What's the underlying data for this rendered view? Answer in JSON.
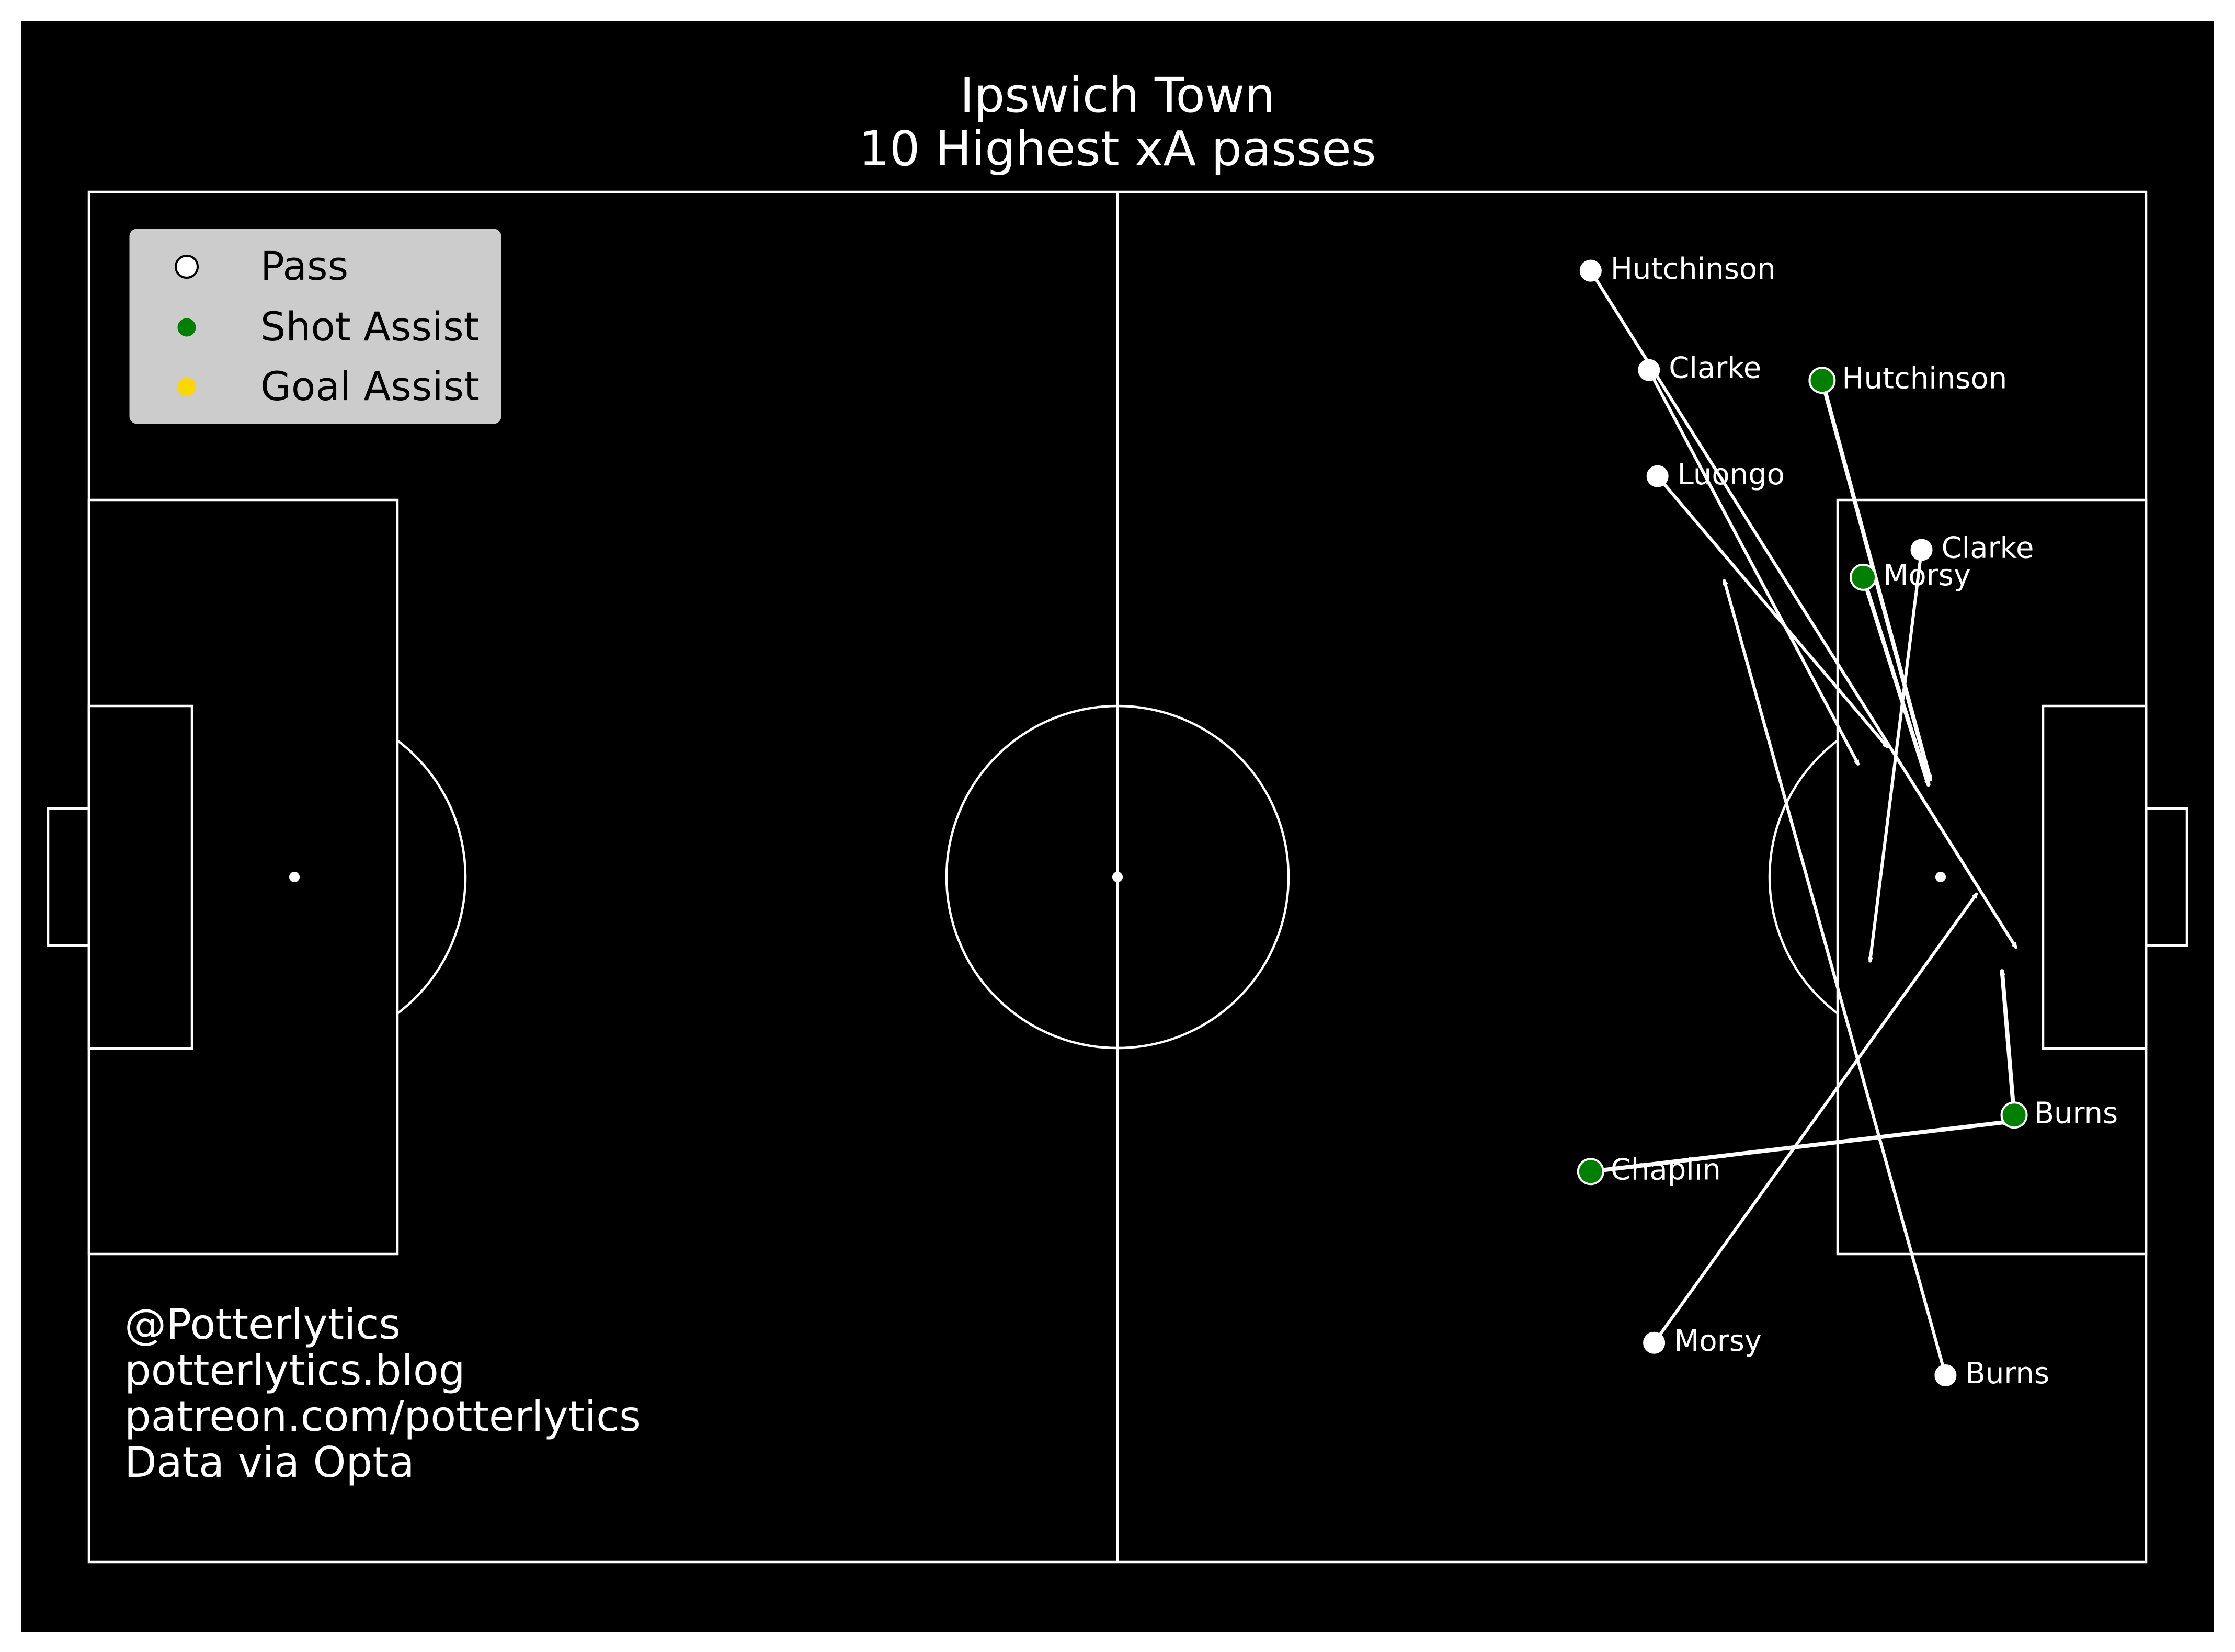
{
  "title": {
    "line1": "Ipswich Town",
    "line2": "10 Highest xA passes"
  },
  "legend": [
    {
      "label": "Pass",
      "type": "pass"
    },
    {
      "label": "Shot Assist",
      "type": "shot_assist"
    },
    {
      "label": "Goal Assist",
      "type": "goal_assist"
    }
  ],
  "credits": [
    "@Potterlytics",
    "potterlytics.blog",
    "patreon.com/potterlytics",
    "Data via Opta"
  ],
  "colors": {
    "background": "#000000",
    "pitch_lines": "#ffffff",
    "pass": "#ffffff",
    "shot_assist": "#008000",
    "goal_assist": "#ffd700",
    "legend_bg": "#cccccc"
  },
  "chart_data": {
    "type": "scatter",
    "x_range": [
      0,
      120
    ],
    "y_range": [
      0,
      80
    ],
    "series": [
      {
        "name": "Pass",
        "type": "pass"
      },
      {
        "name": "Shot Assist",
        "type": "shot_assist"
      },
      {
        "name": "Goal Assist",
        "type": "goal_assist"
      }
    ],
    "passes": [
      {
        "player": "Hutchinson",
        "type": "pass",
        "x": 87.6,
        "y": 75.4,
        "end_x": 112.4,
        "end_y": 35.9
      },
      {
        "player": "Clarke",
        "type": "pass",
        "x": 91.0,
        "y": 69.6,
        "end_x": 103.2,
        "end_y": 46.6
      },
      {
        "player": "Hutchinson",
        "type": "shot_assist",
        "x": 101.1,
        "y": 69.0,
        "end_x": 107.4,
        "end_y": 45.7
      },
      {
        "player": "Luongo",
        "type": "pass",
        "x": 91.5,
        "y": 63.4,
        "end_x": 104.9,
        "end_y": 47.6
      },
      {
        "player": "Clarke",
        "type": "pass",
        "x": 106.9,
        "y": 59.1,
        "end_x": 103.9,
        "end_y": 35.1
      },
      {
        "player": "Morsy",
        "type": "shot_assist",
        "x": 103.5,
        "y": 57.5,
        "end_x": 107.3,
        "end_y": 45.4
      },
      {
        "player": "Burns",
        "type": "shot_assist",
        "x": 112.3,
        "y": 26.1,
        "end_x": 111.6,
        "end_y": 34.5
      },
      {
        "player": "Chaplin",
        "type": "shot_assist",
        "x": 87.6,
        "y": 22.8,
        "end_x": 111.9,
        "end_y": 25.7
      },
      {
        "player": "Morsy",
        "type": "pass",
        "x": 91.3,
        "y": 12.8,
        "end_x": 110.1,
        "end_y": 39.0
      },
      {
        "player": "Burns",
        "type": "pass",
        "x": 108.3,
        "y": 10.9,
        "end_x": 95.4,
        "end_y": 57.3
      }
    ]
  }
}
